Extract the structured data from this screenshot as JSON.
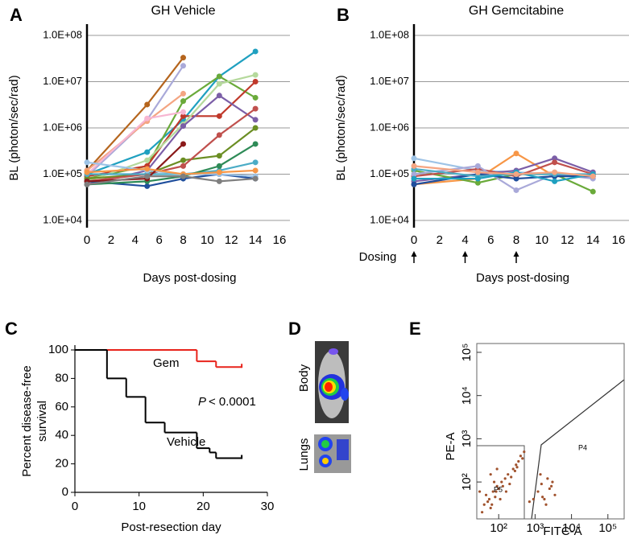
{
  "chart_data": [
    {
      "type": "line",
      "panel": "A",
      "title": "GH Vehicle",
      "xlabel": "Days post-dosing",
      "ylabel": "BL (photon/sec/rad)",
      "ylog": true,
      "grid": true,
      "x": [
        0,
        5,
        8,
        11,
        14
      ],
      "xlim": [
        0,
        16
      ],
      "xticks": [
        0,
        2,
        4,
        6,
        8,
        10,
        12,
        14,
        16
      ],
      "ylim": [
        10000,
        100000000
      ],
      "yticks": [
        {
          "value": 10000,
          "label": "1.0E+04"
        },
        {
          "value": 100000,
          "label": "1.0E+05"
        },
        {
          "value": 1000000,
          "label": "1.0E+06"
        },
        {
          "value": 10000000,
          "label": "1.0E+07"
        },
        {
          "value": 100000000,
          "label": "1.0E+08"
        }
      ],
      "series": [
        {
          "color": "#b5651d",
          "values": [
            120000,
            3200000,
            33000000,
            null,
            null
          ]
        },
        {
          "color": "#a9a9d9",
          "values": [
            90000,
            1500000,
            22000000,
            null,
            null
          ]
        },
        {
          "color": "#1fa0c0",
          "values": [
            100000,
            300000,
            1500000,
            13000000,
            45000000
          ]
        },
        {
          "color": "#6aaa3a",
          "values": [
            80000,
            150000,
            3800000,
            13000000,
            4500000
          ]
        },
        {
          "color": "#f4a582",
          "values": [
            120000,
            1400000,
            5500000,
            null,
            null
          ]
        },
        {
          "color": "#c0392b",
          "values": [
            90000,
            150000,
            1800000,
            1800000,
            10000000
          ]
        },
        {
          "color": "#f7b6d2",
          "values": [
            100000,
            1600000,
            2200000,
            null,
            null
          ]
        },
        {
          "color": "#b5d99c",
          "values": [
            70000,
            200000,
            1200000,
            9000000,
            14000000
          ]
        },
        {
          "color": "#7b5ea7",
          "values": [
            60000,
            120000,
            1100000,
            5000000,
            1500000
          ]
        },
        {
          "color": "#6b8e23",
          "values": [
            80000,
            100000,
            200000,
            250000,
            1000000
          ]
        },
        {
          "color": "#c0504d",
          "values": [
            70000,
            100000,
            150000,
            700000,
            2600000
          ]
        },
        {
          "color": "#1f4e9c",
          "values": [
            70000,
            55000,
            80000,
            100000,
            80000
          ]
        },
        {
          "color": "#4bacc6",
          "values": [
            100000,
            100000,
            100000,
            120000,
            180000
          ]
        },
        {
          "color": "#2e8b57",
          "values": [
            60000,
            70000,
            90000,
            150000,
            450000
          ]
        },
        {
          "color": "#9dc3e6",
          "values": [
            180000,
            120000,
            100000,
            100000,
            90000
          ]
        },
        {
          "color": "#8b1a1a",
          "values": [
            70000,
            80000,
            450000,
            null,
            null
          ]
        },
        {
          "color": "#f79646",
          "values": [
            110000,
            130000,
            100000,
            110000,
            120000
          ]
        },
        {
          "color": "#7f7f7f",
          "values": [
            60000,
            90000,
            90000,
            70000,
            80000
          ]
        }
      ]
    },
    {
      "type": "line",
      "panel": "B",
      "title": "GH Gemcitabine",
      "xlabel": "Days post-dosing",
      "ylabel": "BL (photon/sec/rad)",
      "ylog": true,
      "grid": true,
      "dosing_label": "Dosing",
      "dosing_days": [
        0,
        4,
        8
      ],
      "x": [
        0,
        5,
        8,
        11,
        14
      ],
      "xlim": [
        0,
        16
      ],
      "xticks": [
        0,
        2,
        4,
        6,
        8,
        10,
        12,
        14,
        16
      ],
      "ylim": [
        10000,
        100000000
      ],
      "yticks": [
        {
          "value": 10000,
          "label": "1.0E+04"
        },
        {
          "value": 100000,
          "label": "1.0E+05"
        },
        {
          "value": 1000000,
          "label": "1.0E+06"
        },
        {
          "value": 10000000,
          "label": "1.0E+07"
        },
        {
          "value": 100000000,
          "label": "1.0E+08"
        }
      ],
      "series": [
        {
          "color": "#9dc3e6",
          "values": [
            220000,
            120000,
            110000,
            100000,
            90000
          ]
        },
        {
          "color": "#f79646",
          "values": [
            60000,
            80000,
            280000,
            90000,
            100000
          ]
        },
        {
          "color": "#7b5ea7",
          "values": [
            70000,
            100000,
            120000,
            220000,
            110000
          ]
        },
        {
          "color": "#6aaa3a",
          "values": [
            120000,
            65000,
            100000,
            100000,
            42000
          ]
        },
        {
          "color": "#c0504d",
          "values": [
            90000,
            130000,
            90000,
            180000,
            100000
          ]
        },
        {
          "color": "#a9a9d9",
          "values": [
            100000,
            150000,
            45000,
            100000,
            80000
          ]
        },
        {
          "color": "#1f4e9c",
          "values": [
            60000,
            100000,
            80000,
            90000,
            90000
          ]
        },
        {
          "color": "#4bacc6",
          "values": [
            130000,
            90000,
            100000,
            100000,
            100000
          ]
        },
        {
          "color": "#1fa0c0",
          "values": [
            80000,
            80000,
            110000,
            70000,
            100000
          ]
        },
        {
          "color": "#f4a582",
          "values": [
            150000,
            110000,
            100000,
            110000,
            90000
          ]
        }
      ]
    },
    {
      "type": "step",
      "panel": "C",
      "xlabel": "Post-resection day",
      "ylabel": [
        "Percent disease-free",
        "survival"
      ],
      "xlim": [
        0,
        30
      ],
      "xticks": [
        0,
        10,
        20,
        30
      ],
      "ylim": [
        0,
        100
      ],
      "yticks": [
        0,
        20,
        40,
        60,
        80,
        100
      ],
      "annotations": {
        "gem": "Gem",
        "vehicle": "Vehicle",
        "p_symbol": "P",
        "p_value": "< 0.0001"
      },
      "series": [
        {
          "color": "#e8231b",
          "x": [
            0,
            19,
            22,
            26
          ],
          "values": [
            100,
            92,
            88,
            88
          ]
        },
        {
          "color": "#000000",
          "x": [
            0,
            5,
            8,
            11,
            14,
            19,
            21,
            22,
            26
          ],
          "values": [
            100,
            80,
            67,
            49,
            42,
            31,
            28,
            24,
            24
          ]
        }
      ]
    },
    {
      "type": "scatter",
      "panel": "E",
      "xlabel": "FITC-A",
      "ylabel": "PE-A",
      "xlog": true,
      "ylog": true,
      "gates": [
        "P5",
        "P4"
      ],
      "color": "#a0522d",
      "xlim": [
        25,
        280000
      ],
      "ylim": [
        14,
        160000
      ],
      "xticks": [
        {
          "value": 100,
          "label": "10²"
        },
        {
          "value": 1000,
          "label": "10³"
        },
        {
          "value": 10000,
          "label": "10⁴"
        },
        {
          "value": 100000,
          "label": "10⁵"
        }
      ],
      "yticks": [
        {
          "value": 100,
          "label": "10²"
        },
        {
          "value": 1000,
          "label": "10³"
        },
        {
          "value": 10000,
          "label": "10⁴"
        },
        {
          "value": 100000,
          "label": "10⁵"
        }
      ],
      "x": [
        40,
        55,
        60,
        70,
        80,
        90,
        100,
        120,
        150,
        180,
        200,
        250,
        300,
        350,
        400,
        450,
        35,
        45,
        50,
        65,
        75,
        85,
        110,
        130,
        160,
        220,
        280,
        320,
        60,
        90,
        1200,
        1500,
        1800,
        2200,
        2500,
        3000,
        3500,
        1400,
        2000,
        2800,
        1600,
        900,
        700,
        500,
        30
      ],
      "values": [
        30,
        40,
        25,
        60,
        45,
        80,
        70,
        100,
        120,
        150,
        90,
        200,
        250,
        300,
        400,
        350,
        20,
        50,
        35,
        30,
        100,
        60,
        40,
        80,
        60,
        130,
        180,
        220,
        150,
        200,
        60,
        90,
        40,
        120,
        70,
        100,
        50,
        150,
        30,
        80,
        45,
        40,
        35,
        500,
        60
      ]
    }
  ],
  "panel_d": {
    "panel": "D",
    "body": "Body",
    "lungs": "Lungs"
  }
}
